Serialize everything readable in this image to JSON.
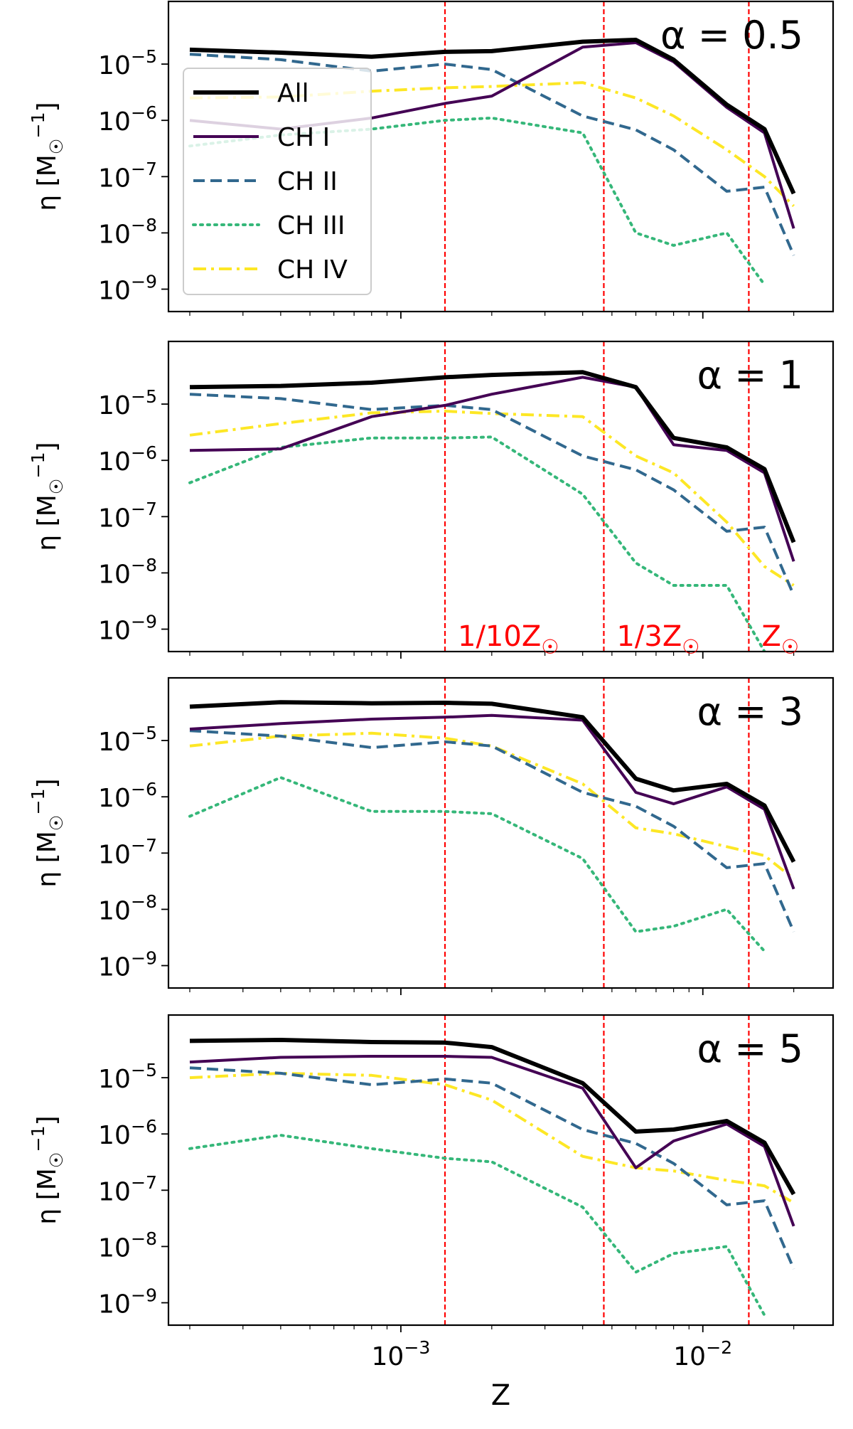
{
  "figure": {
    "xlabel": "Z"
  },
  "legend": {
    "location": "upper-left of top panel",
    "entries": [
      {
        "label": "All",
        "series": "all"
      },
      {
        "label": "CH I",
        "series": "ch1"
      },
      {
        "label": "CH II",
        "series": "ch2"
      },
      {
        "label": "CH III",
        "series": "ch3"
      },
      {
        "label": "CH IV",
        "series": "ch4"
      }
    ]
  },
  "series_styles": {
    "all": {
      "color": "#000000",
      "dash": "solid"
    },
    "ch1": {
      "color": "#440154",
      "dash": "solid"
    },
    "ch2": {
      "color": "#31688e",
      "dash": "dashed"
    },
    "ch3": {
      "color": "#35b779",
      "dash": "dotted"
    },
    "ch4": {
      "color": "#fde725",
      "dash": "dashdot"
    },
    "refline": {
      "color": "#ff0000",
      "dash": "dashed"
    }
  },
  "chart_data": {
    "type": "line",
    "xscale": "log",
    "yscale": "log",
    "xlabel": "Z",
    "ylabel": "η [M☉⁻¹]",
    "xlim": [
      0.00017,
      0.027
    ],
    "ylim": [
      4e-10,
      0.00013
    ],
    "x": [
      0.0002,
      0.0004,
      0.0008,
      0.0014,
      0.002,
      0.004,
      0.006,
      0.008,
      0.012,
      0.016,
      0.02
    ],
    "x_ticks": [
      {
        "value": 0.001,
        "label": "10⁻³"
      },
      {
        "value": 0.01,
        "label": "10⁻²"
      }
    ],
    "y_ticks": [
      {
        "value": 1e-05,
        "label": "10⁻⁵"
      },
      {
        "value": 1e-06,
        "label": "10⁻⁶"
      },
      {
        "value": 1e-07,
        "label": "10⁻⁷"
      },
      {
        "value": 1e-08,
        "label": "10⁻⁸"
      },
      {
        "value": 1e-09,
        "label": "10⁻⁹"
      }
    ],
    "reference_lines": [
      {
        "value": 0.0014,
        "label": "1/10Z☉"
      },
      {
        "value": 0.0047,
        "label": "1/3Z☉"
      },
      {
        "value": 0.0142,
        "label": "Z☉"
      }
    ],
    "reference_labels_panel": 1,
    "panels": [
      {
        "title": "α = 0.5",
        "series": [
          {
            "name": "All",
            "key": "all",
            "values": [
              1.8e-05,
              1.6e-05,
              1.35e-05,
              1.65e-05,
              1.7e-05,
              2.5e-05,
              2.7e-05,
              1.2e-05,
              1.9e-06,
              7e-07,
              5e-08
            ]
          },
          {
            "name": "CH I",
            "key": "ch1",
            "values": [
              1e-06,
              7e-07,
              1.1e-06,
              2e-06,
              2.7e-06,
              2e-05,
              2.4e-05,
              1.1e-05,
              1.7e-06,
              6e-07,
              1.2e-08
            ]
          },
          {
            "name": "CH II",
            "key": "ch2",
            "values": [
              1.5e-05,
              1.2e-05,
              7.5e-06,
              1e-05,
              8e-06,
              1.2e-06,
              6.8e-07,
              3e-07,
              5.5e-08,
              6.5e-08,
              4e-09
            ]
          },
          {
            "name": "CH III",
            "key": "ch3",
            "values": [
              3.5e-07,
              5.5e-07,
              7e-07,
              1e-06,
              1.1e-06,
              6e-07,
              1e-08,
              6e-09,
              1e-08,
              1.2e-09,
              null
            ]
          },
          {
            "name": "CH IV",
            "key": "ch4",
            "values": [
              2.5e-06,
              2.6e-06,
              3.3e-06,
              3.8e-06,
              4e-06,
              4.7e-06,
              2.5e-06,
              1.2e-06,
              3e-07,
              1e-07,
              3e-08
            ]
          }
        ]
      },
      {
        "title": "α = 1",
        "series": [
          {
            "name": "All",
            "key": "all",
            "values": [
              2e-05,
              2.1e-05,
              2.4e-05,
              3e-05,
              3.3e-05,
              3.7e-05,
              2e-05,
              2.5e-06,
              1.7e-06,
              7e-07,
              3.5e-08
            ]
          },
          {
            "name": "CH I",
            "key": "ch1",
            "values": [
              1.5e-06,
              1.6e-06,
              6e-06,
              9.5e-06,
              1.5e-05,
              3e-05,
              2e-05,
              1.9e-06,
              1.5e-06,
              6e-07,
              1.6e-08
            ]
          },
          {
            "name": "CH II",
            "key": "ch2",
            "values": [
              1.5e-05,
              1.25e-05,
              8e-06,
              9.5e-06,
              8e-06,
              1.2e-06,
              6.8e-07,
              3e-07,
              5.5e-08,
              6.5e-08,
              4e-09
            ]
          },
          {
            "name": "CH III",
            "key": "ch3",
            "values": [
              4e-07,
              1.7e-06,
              2.5e-06,
              2.5e-06,
              2.6e-06,
              2.5e-07,
              1.5e-08,
              6e-09,
              6e-09,
              4e-10,
              null
            ]
          },
          {
            "name": "CH IV",
            "key": "ch4",
            "values": [
              2.8e-06,
              4.5e-06,
              7e-06,
              7.5e-06,
              6.8e-06,
              6e-06,
              1.2e-06,
              6e-07,
              8e-08,
              1.3e-08,
              6e-09
            ]
          }
        ]
      },
      {
        "title": "α = 3",
        "series": [
          {
            "name": "All",
            "key": "all",
            "values": [
              4e-05,
              4.8e-05,
              4.6e-05,
              4.7e-05,
              4.5e-05,
              2.6e-05,
              2.1e-06,
              1.3e-06,
              1.7e-06,
              7e-07,
              7e-08
            ]
          },
          {
            "name": "CH I",
            "key": "ch1",
            "values": [
              1.6e-05,
              2e-05,
              2.4e-05,
              2.6e-05,
              2.8e-05,
              2.3e-05,
              1.2e-06,
              7.5e-07,
              1.5e-06,
              6e-07,
              2.3e-08
            ]
          },
          {
            "name": "CH II",
            "key": "ch2",
            "values": [
              1.5e-05,
              1.2e-05,
              7.5e-06,
              9.5e-06,
              8e-06,
              1.2e-06,
              6.8e-07,
              3e-07,
              5.5e-08,
              6.5e-08,
              4e-09
            ]
          },
          {
            "name": "CH III",
            "key": "ch3",
            "values": [
              4.5e-07,
              2.2e-06,
              5.5e-07,
              5.5e-07,
              5e-07,
              8e-08,
              4e-09,
              5e-09,
              1e-08,
              1.8e-09,
              null
            ]
          },
          {
            "name": "CH IV",
            "key": "ch4",
            "values": [
              8e-06,
              1.2e-05,
              1.35e-05,
              1.1e-05,
              8e-06,
              1.7e-06,
              2.8e-07,
              2.2e-07,
              1.3e-07,
              9e-08,
              3.5e-08
            ]
          }
        ]
      },
      {
        "title": "α = 5",
        "series": [
          {
            "name": "All",
            "key": "all",
            "values": [
              4.5e-05,
              4.7e-05,
              4.3e-05,
              4.2e-05,
              3.5e-05,
              8e-06,
              1.1e-06,
              1.2e-06,
              1.7e-06,
              7e-07,
              8.5e-08
            ]
          },
          {
            "name": "CH I",
            "key": "ch1",
            "values": [
              1.9e-05,
              2.3e-05,
              2.4e-05,
              2.4e-05,
              2.3e-05,
              6.5e-06,
              2.5e-07,
              7.5e-07,
              1.5e-06,
              6e-07,
              2.3e-08
            ]
          },
          {
            "name": "CH II",
            "key": "ch2",
            "values": [
              1.5e-05,
              1.2e-05,
              7.5e-06,
              9.5e-06,
              8e-06,
              1.2e-06,
              6.8e-07,
              3e-07,
              5.5e-08,
              6.5e-08,
              4e-09
            ]
          },
          {
            "name": "CH III",
            "key": "ch3",
            "values": [
              5.5e-07,
              9.5e-07,
              5.5e-07,
              3.7e-07,
              3.2e-07,
              5e-08,
              3.5e-09,
              7.5e-09,
              1e-08,
              6e-10,
              null
            ]
          },
          {
            "name": "CH IV",
            "key": "ch4",
            "values": [
              1e-05,
              1.2e-05,
              1.1e-05,
              7.5e-06,
              4e-06,
              4e-07,
              2.5e-07,
              2.2e-07,
              1.5e-07,
              1.2e-07,
              6e-08
            ]
          }
        ]
      }
    ]
  }
}
